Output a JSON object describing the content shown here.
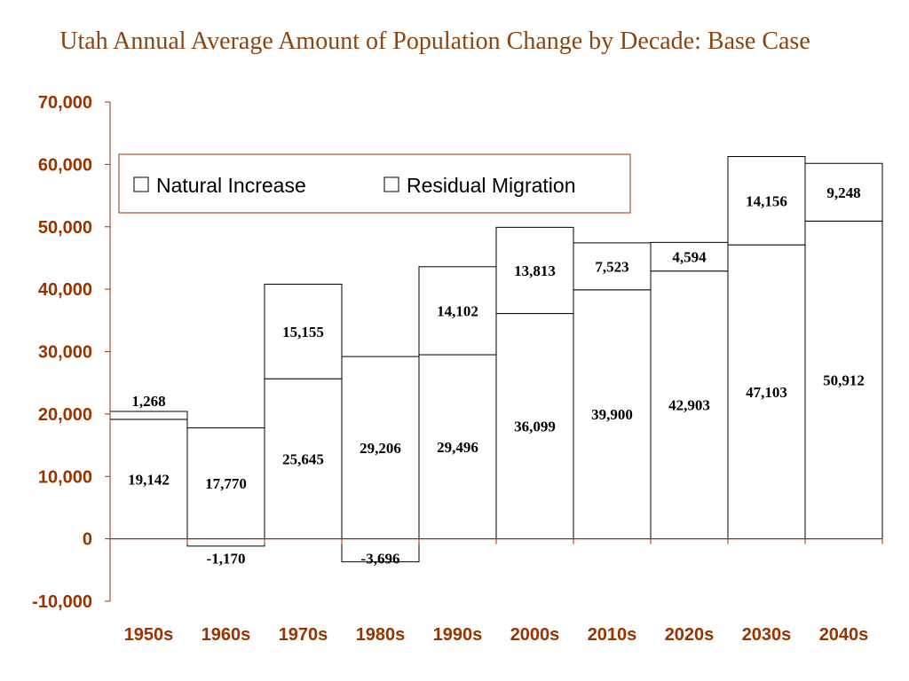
{
  "chart_data": {
    "type": "bar",
    "stacked": true,
    "title": "Utah Annual Average Amount of Population Change by Decade: Base Case",
    "categories": [
      "1950s",
      "1960s",
      "1970s",
      "1980s",
      "1990s",
      "2000s",
      "2010s",
      "2020s",
      "2030s",
      "2040s"
    ],
    "series": [
      {
        "name": "Natural Increase",
        "values": [
          19142,
          17770,
          25645,
          29206,
          29496,
          36099,
          39900,
          42903,
          47103,
          50912
        ]
      },
      {
        "name": "Residual Migration",
        "values": [
          1268,
          -1170,
          15155,
          -3696,
          14102,
          13813,
          7523,
          4594,
          14156,
          9248
        ]
      }
    ],
    "ylim": [
      -10000,
      70000
    ],
    "yticks": [
      "70,000",
      "60,000",
      "50,000",
      "40,000",
      "30,000",
      "20,000",
      "10,000",
      "0",
      "-10,000"
    ],
    "legend_position": "top",
    "grid": false,
    "colors": {
      "axis": "#993300",
      "bar_fill": "#ffffff",
      "bar_edge": "#000000",
      "title": "#8B4513"
    }
  }
}
